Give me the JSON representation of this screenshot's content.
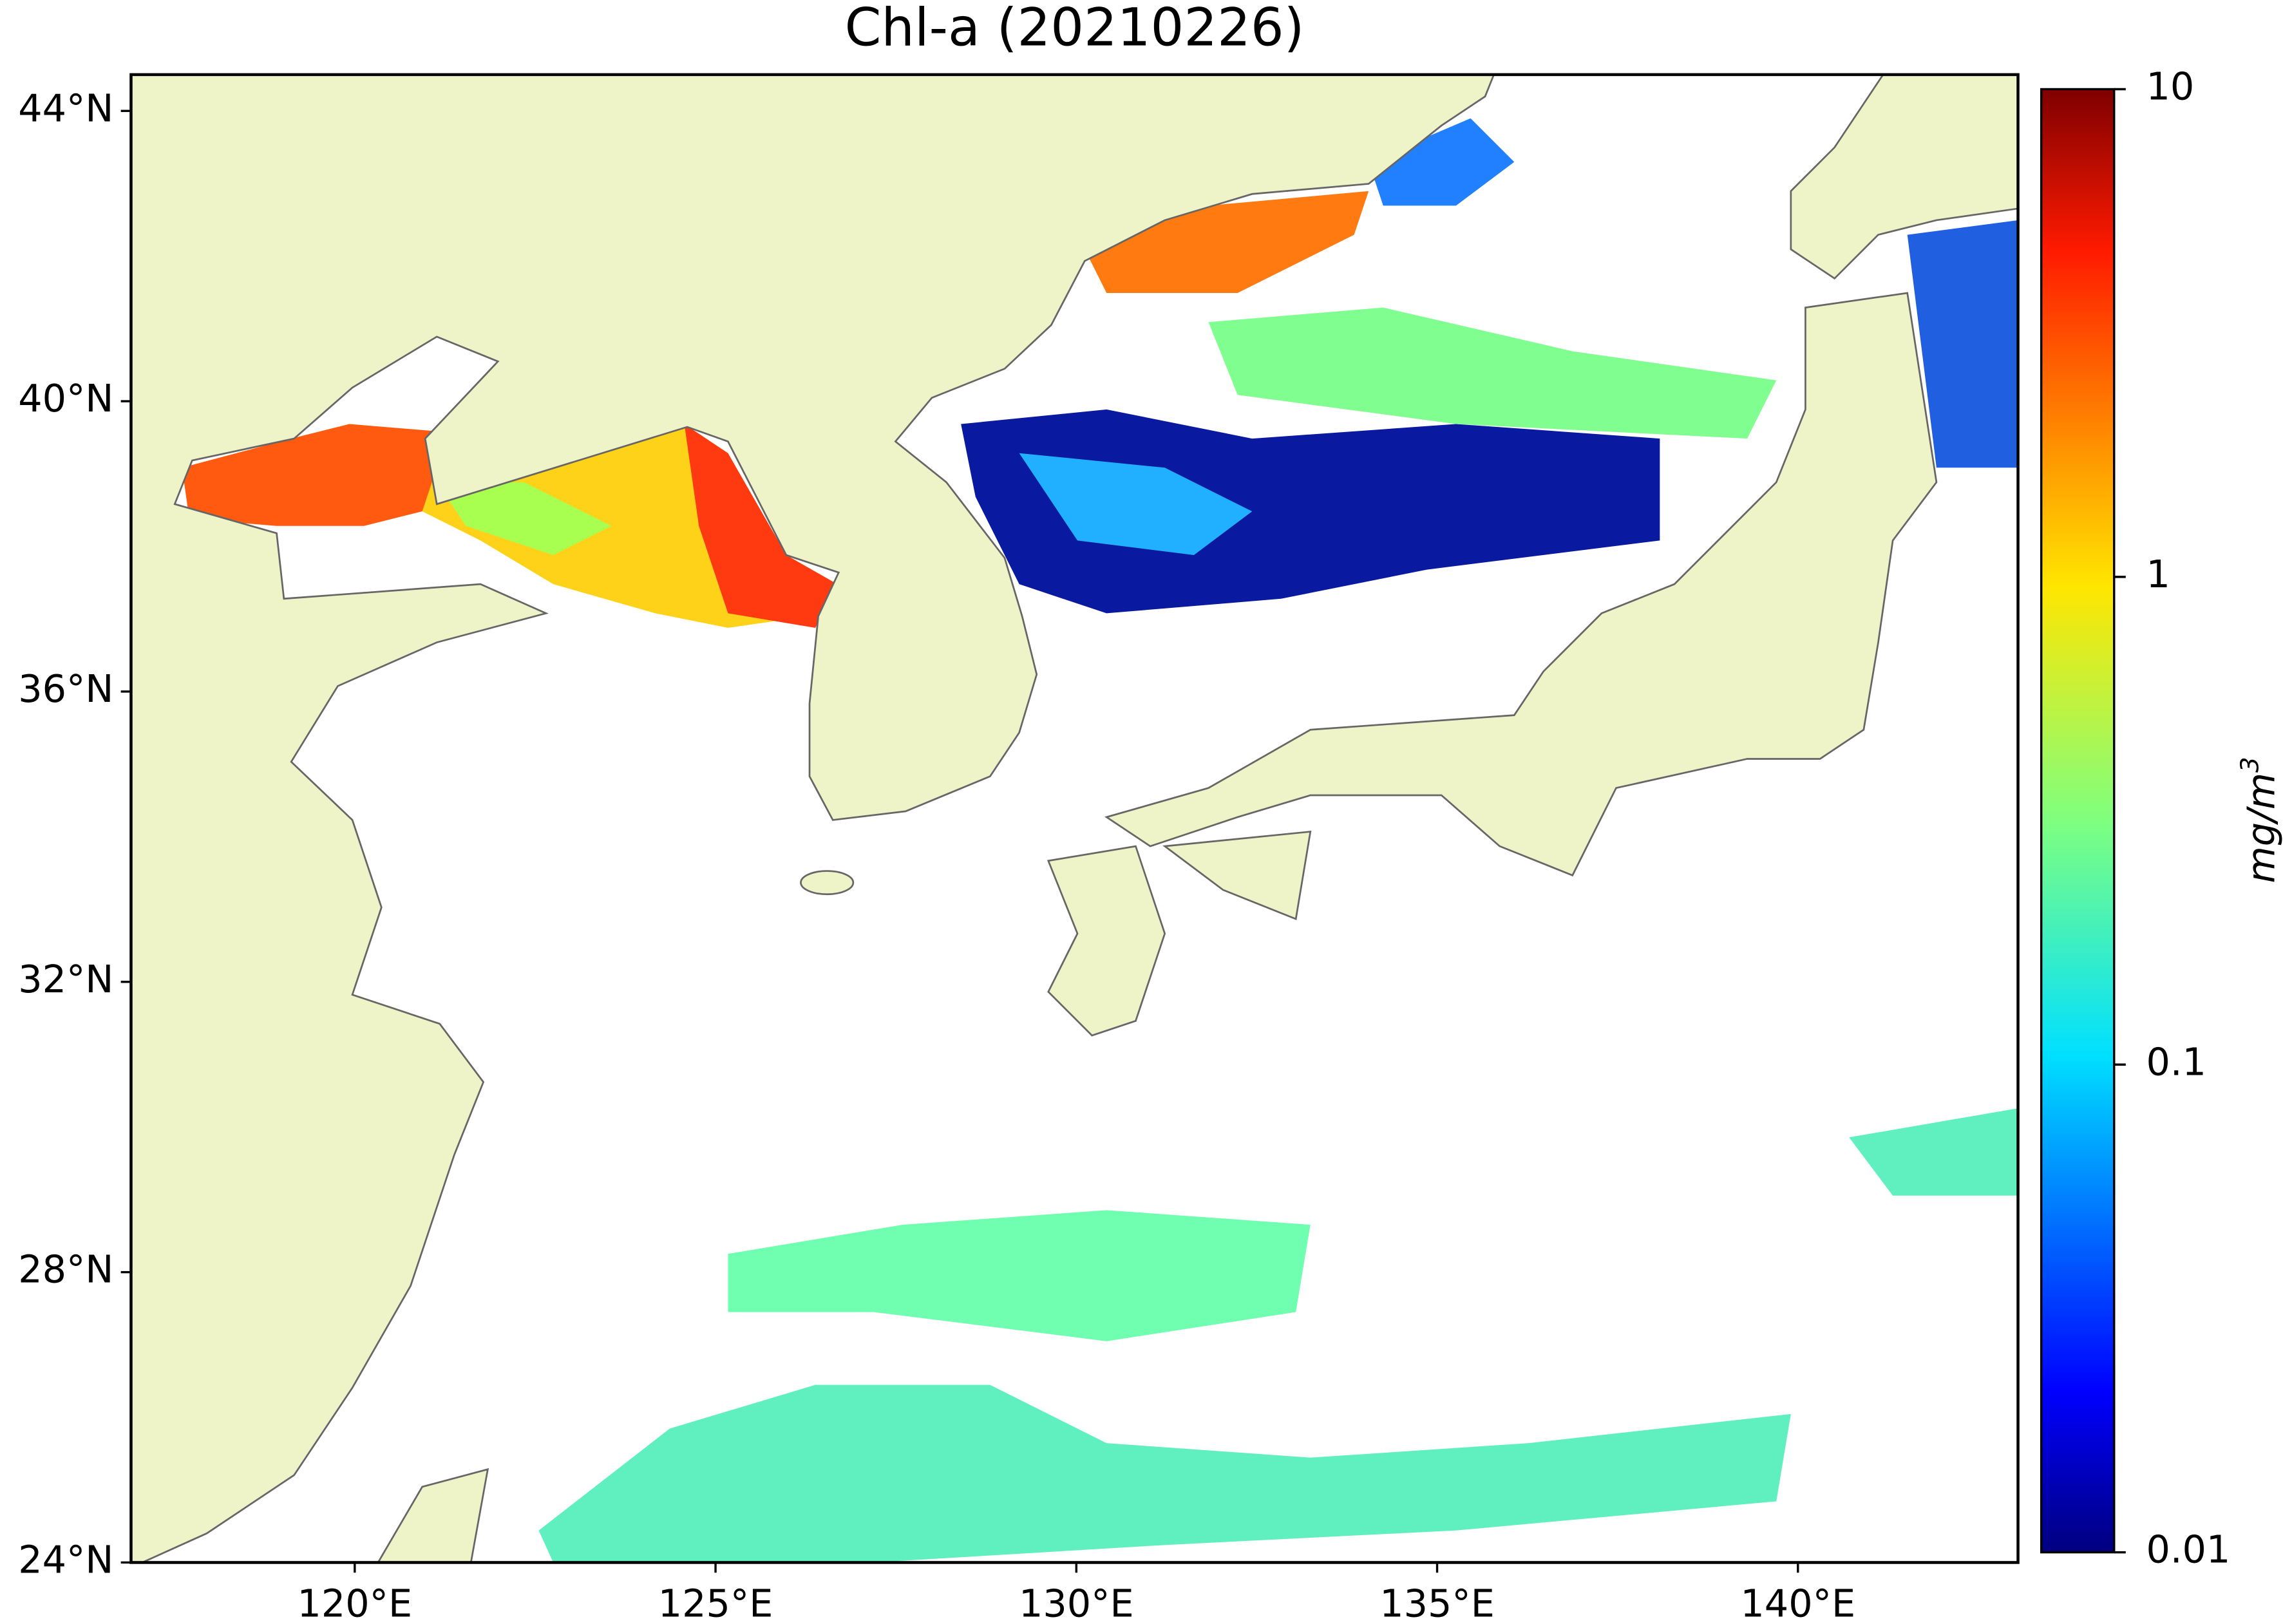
{
  "map": {
    "title": "Chl-a (20210226)",
    "lon_lim": [
      116.9,
      143.05
    ],
    "lat_lim": [
      24,
      44.5
    ],
    "lon_ticks": [
      {
        "value": 120,
        "label": "120°E"
      },
      {
        "value": 125,
        "label": "125°E"
      },
      {
        "value": 130,
        "label": "130°E"
      },
      {
        "value": 135,
        "label": "135°E"
      },
      {
        "value": 140,
        "label": "140°E"
      }
    ],
    "lat_ticks": [
      {
        "value": 24,
        "label": "24°N"
      },
      {
        "value": 28,
        "label": "28°N"
      },
      {
        "value": 32,
        "label": "32°N"
      },
      {
        "value": 36,
        "label": "36°N"
      },
      {
        "value": 40,
        "label": "40°N"
      },
      {
        "value": 44,
        "label": "44°N"
      }
    ],
    "colorbar": {
      "label": "mg/m",
      "label_sup": "3",
      "lim": [
        0.01,
        10
      ],
      "ticks": [
        0.01,
        0.1,
        1,
        10
      ],
      "log": true,
      "colormap": "jet"
    }
  }
}
